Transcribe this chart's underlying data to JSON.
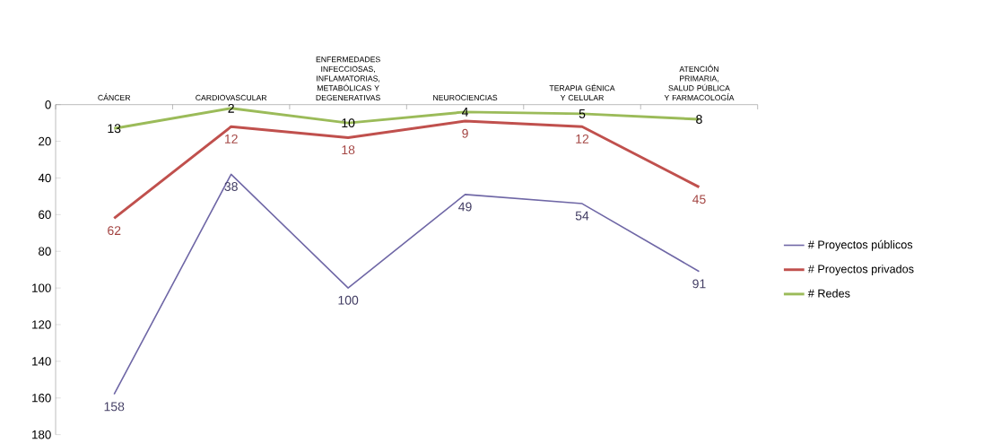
{
  "chart_data": {
    "type": "line",
    "categories": [
      "CÁNCER",
      "CARDIOVASCULAR",
      "ENFERMEDADES INFECCIOSAS, INFLAMATORIAS, METABÓLICAS Y DEGENERATIVAS",
      "NEUROCIENCIAS",
      "TERAPIA GÉNICA Y CELULAR",
      "ATENCIÓN PRIMARIA, SALUD PÚBLICA Y FARMACOLOGÍA"
    ],
    "series": [
      {
        "name": "# Proyectos públicos",
        "color": "#6f67a6",
        "values": [
          158,
          38,
          100,
          49,
          54,
          91
        ]
      },
      {
        "name": "# Proyectos privados",
        "color": "#c0504d",
        "values": [
          62,
          12,
          18,
          9,
          12,
          45
        ]
      },
      {
        "name": "# Redes",
        "color": "#9bbb59",
        "values": [
          13,
          2,
          10,
          4,
          5,
          8
        ]
      }
    ],
    "ylim": [
      180,
      0
    ],
    "yticks": [
      0,
      20,
      40,
      60,
      80,
      100,
      120,
      140,
      160,
      180
    ],
    "data_labels": true,
    "legend": "right",
    "grid": false,
    "marker": "none",
    "line_style": "solid"
  }
}
